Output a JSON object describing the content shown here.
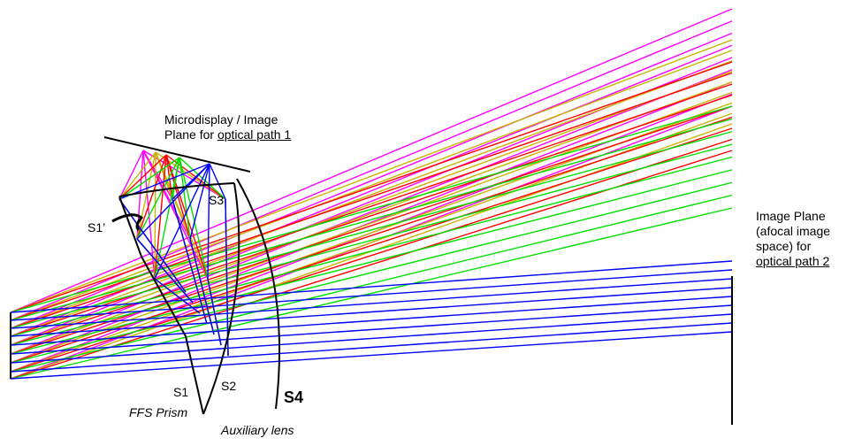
{
  "labels": {
    "microdisplay_line1": "Microdisplay / Image",
    "microdisplay_line2_prefix": "Plane for ",
    "microdisplay_line2_link": "optical path 1",
    "image_plane_line1": "Image Plane",
    "image_plane_line2": "(afocal image",
    "image_plane_line3": "space) for",
    "image_plane_line4": "optical path 2",
    "s1_prime": "S1’",
    "s3": "S3",
    "s1": "S1",
    "s2": "S2",
    "s4": "S4",
    "prism": "FFS Prism",
    "aux_lens": "Auxiliary lens"
  },
  "colors": {
    "magenta": "#ff00ff",
    "olive": "#c8b400",
    "red": "#ff0000",
    "green": "#00e000",
    "blue": "#0000ff",
    "lens": "#000000"
  }
}
